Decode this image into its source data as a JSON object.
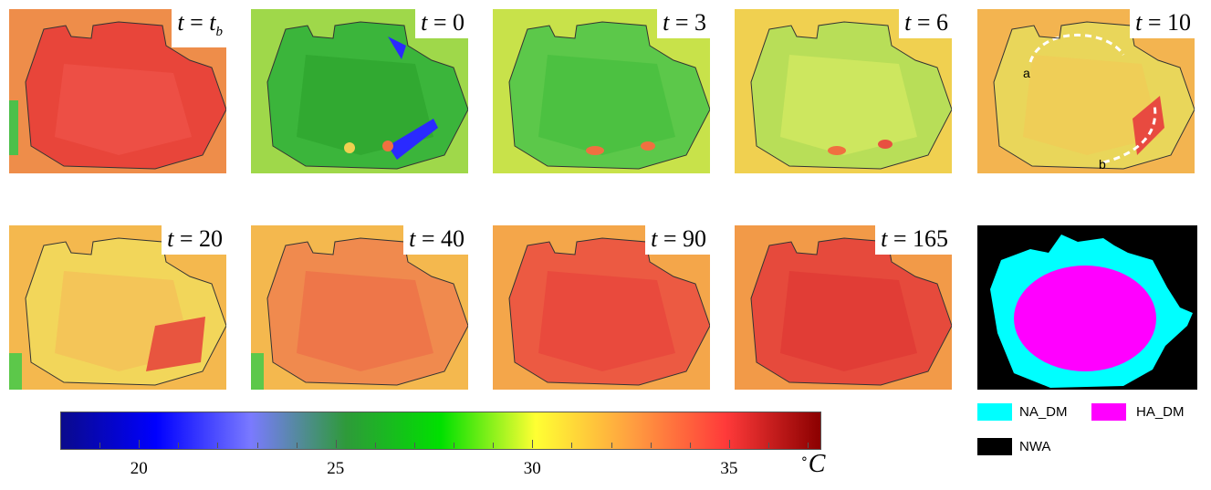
{
  "panels": [
    {
      "t_var": "t",
      "t_eq": "=",
      "t_val": "t",
      "t_sub": "b",
      "fill": "#e8453a",
      "inner": "#f0544a",
      "edge": "#f4a03a"
    },
    {
      "t_var": "t",
      "t_eq": "=",
      "t_val": "0",
      "t_sub": "",
      "fill": "#3bb53b",
      "inner": "#2fa62f",
      "edge": "#9fd84a"
    },
    {
      "t_var": "t",
      "t_eq": "=",
      "t_val": "3",
      "t_sub": "",
      "fill": "#5cc84a",
      "inner": "#49bf3e",
      "edge": "#c8e24a"
    },
    {
      "t_var": "t",
      "t_eq": "=",
      "t_val": "6",
      "t_sub": "",
      "fill": "#b8de58",
      "inner": "#d2e862",
      "edge": "#f0d050"
    },
    {
      "t_var": "t",
      "t_eq": "=",
      "t_val": "10",
      "t_sub": "",
      "fill": "#e9d65a",
      "inner": "#f0cc56",
      "edge": "#f3b450"
    },
    {
      "t_var": "t",
      "t_eq": "=",
      "t_val": "20",
      "t_sub": "",
      "fill": "#f2d65a",
      "inner": "#f4c057",
      "edge": "#f4b84e"
    },
    {
      "t_var": "t",
      "t_eq": "=",
      "t_val": "40",
      "t_sub": "",
      "fill": "#f08a4e",
      "inner": "#ee7048",
      "edge": "#f4b84e"
    },
    {
      "t_var": "t",
      "t_eq": "=",
      "t_val": "90",
      "t_sub": "",
      "fill": "#ec5a42",
      "inner": "#e9463c",
      "edge": "#f4a64a"
    },
    {
      "t_var": "t",
      "t_eq": "=",
      "t_val": "165",
      "t_sub": "",
      "fill": "#e64a3c",
      "inner": "#e03a35",
      "edge": "#f29a48"
    }
  ],
  "annotations": {
    "a": "a",
    "b": "b"
  },
  "colorbar": {
    "ticks": [
      "20",
      "25",
      "30",
      "35"
    ],
    "unit_degree": "∘",
    "unit_letter": "C",
    "min": 18,
    "max": 37.3,
    "stops": [
      "#0a0a8c",
      "#0000ff",
      "#7a7aff",
      "#2e9a3a",
      "#00e000",
      "#ffff33",
      "#ffa040",
      "#ff3a3a",
      "#8b0000"
    ]
  },
  "segmentation": {
    "colors": {
      "na": "#00ffff",
      "ha": "#ff00ff",
      "nwa": "#000000"
    }
  },
  "legend": [
    {
      "label": "NA_DM",
      "color": "#00ffff"
    },
    {
      "label": "HA_DM",
      "color": "#ff00ff"
    },
    {
      "label": "NWA",
      "color": "#000000"
    }
  ]
}
